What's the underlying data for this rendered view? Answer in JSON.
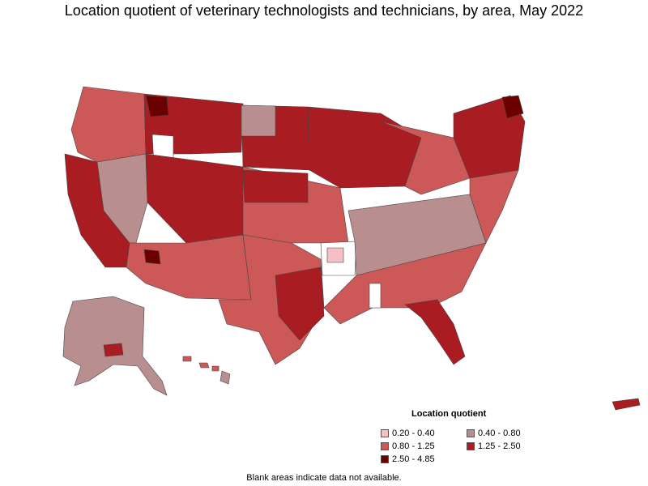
{
  "title": "Location quotient of veterinary technologists and technicians, by area, May 2022",
  "legend": {
    "title": "Location quotient",
    "items": [
      {
        "label": "0.20 - 0.40",
        "color": "#f4c0c6"
      },
      {
        "label": "0.40 - 0.80",
        "color": "#b88e8e"
      },
      {
        "label": "0.80 - 1.25",
        "color": "#cd5858"
      },
      {
        "label": "1.25 - 2.50",
        "color": "#a81c22"
      },
      {
        "label": "2.50 - 4.85",
        "color": "#6a0000"
      }
    ]
  },
  "footnote": "Blank areas indicate data not available.",
  "colors": {
    "border": "#444444",
    "no_data": "#ffffff"
  }
}
